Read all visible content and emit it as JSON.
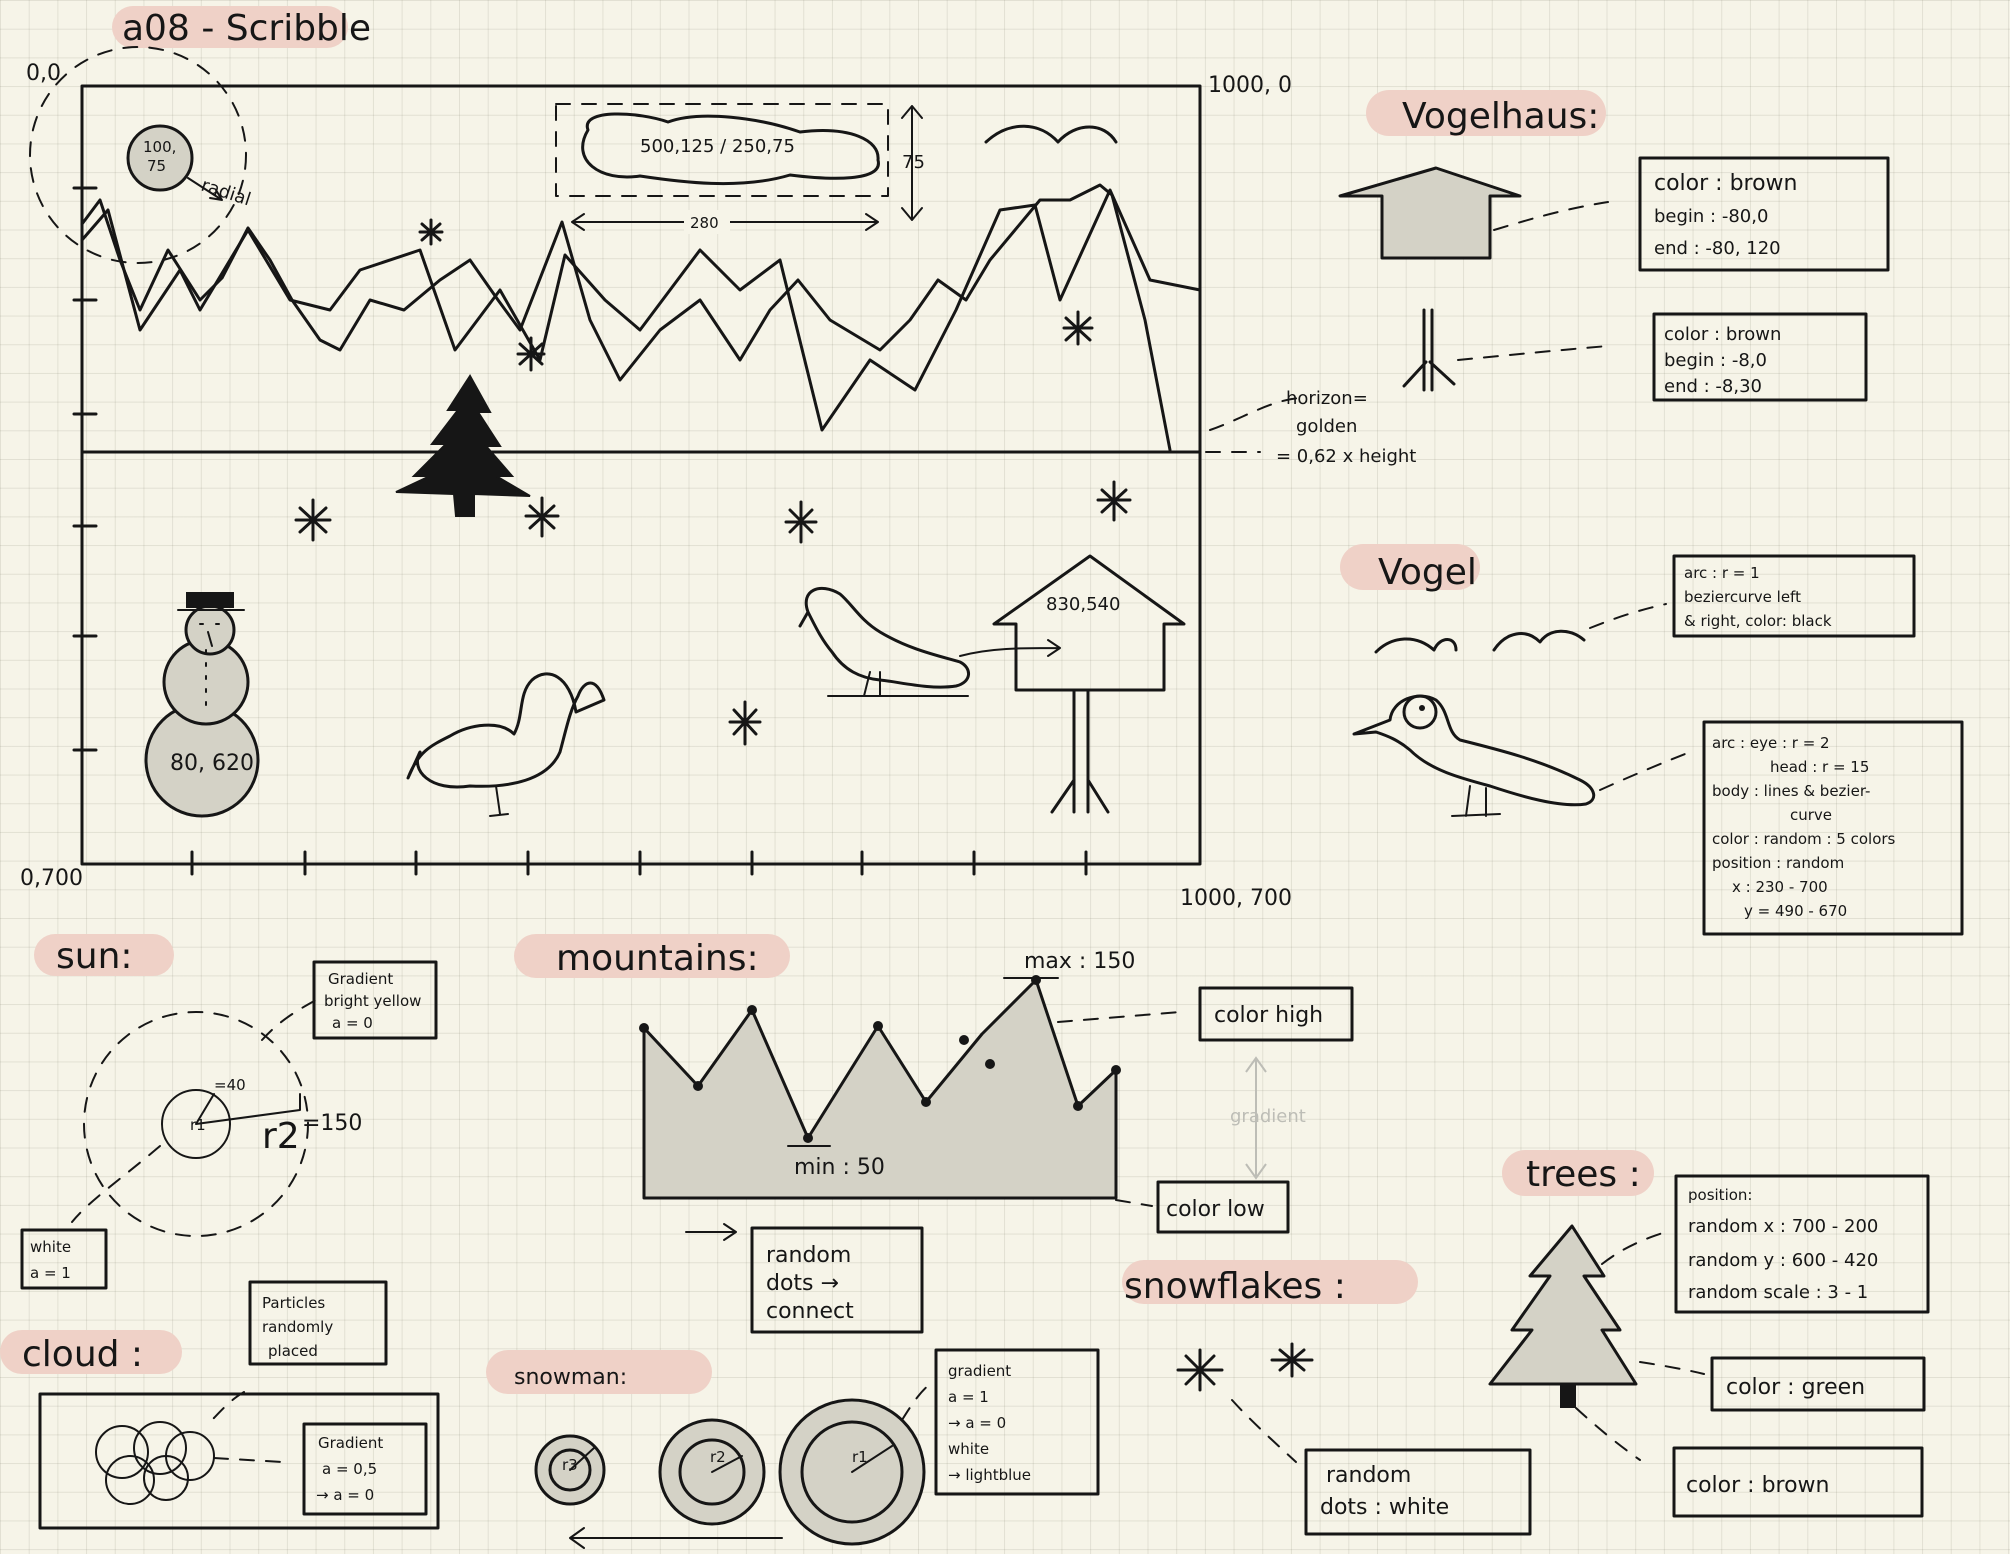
{
  "header": {
    "title": "a08 - Scribble"
  },
  "canvas": {
    "corner_top_left": "0,0",
    "corner_top_right": "1000, 0",
    "corner_bottom_left": "0,700",
    "corner_bottom_right": "1000, 700",
    "cloud_label": "500,125 / 250,75",
    "cloud_height": "75",
    "cloud_width": "280",
    "sun_label_top": "100,",
    "sun_label_bottom": "75",
    "sun_radial": "radial",
    "snowman_label": "80, 620",
    "house_label": "830,540",
    "horizon_line1": "horizon=",
    "horizon_line2": "golden",
    "horizon_line3": "= 0,62 x height"
  },
  "vogelhaus": {
    "title": "Vogelhaus:",
    "roof_note": [
      "color : brown",
      "begin : -80,0",
      "end : -80, 120"
    ],
    "pole_note": [
      "color : brown",
      "begin : -8,0",
      "end : -8,30"
    ]
  },
  "vogel": {
    "title": "Vogel",
    "wing_note": [
      "arc : r = 1",
      "beziercurve left",
      "& right, color: black"
    ],
    "body_note": [
      "arc : eye : r = 2",
      "head : r = 15",
      "body : lines & bezier-",
      "curve",
      "color : random : 5 colors",
      "position : random",
      "x : 230 - 700",
      "y = 490 - 670"
    ]
  },
  "sun": {
    "title": "sun:",
    "gradient_note": [
      "Gradient",
      "bright yellow",
      "a = 0"
    ],
    "white_note": [
      "white",
      "a = 1"
    ],
    "r1_label": "r1",
    "r1_value": "=40",
    "r2_label": "r2",
    "r2_value": "=150"
  },
  "mountains": {
    "title": "mountains:",
    "max_label": "max : 150",
    "min_label": "min : 50",
    "color_high": "color high",
    "color_low": "color low",
    "gradient": "gradient",
    "dots_note": [
      "random",
      "dots →",
      "connect"
    ]
  },
  "cloud": {
    "title": "cloud :",
    "particles_note": [
      "Particles",
      "randomly",
      "placed"
    ],
    "gradient_note": [
      "Gradient",
      "a = 0,5",
      "→ a = 0"
    ]
  },
  "snowman": {
    "title": "snowman:",
    "radii": [
      "r3",
      "r2",
      "r1"
    ],
    "gradient_note": [
      "gradient",
      "a = 1",
      "→ a = 0",
      "white",
      "→ lightblue"
    ]
  },
  "snowflakes": {
    "title": "snowflakes :",
    "note": [
      "random",
      "dots : white"
    ]
  },
  "trees": {
    "title": "trees :",
    "position_note": [
      "position:",
      "random x : 700 - 200",
      "random y : 600 - 420",
      "random scale : 3 - 1"
    ],
    "color_green": "color : green",
    "color_brown": "color : brown"
  }
}
